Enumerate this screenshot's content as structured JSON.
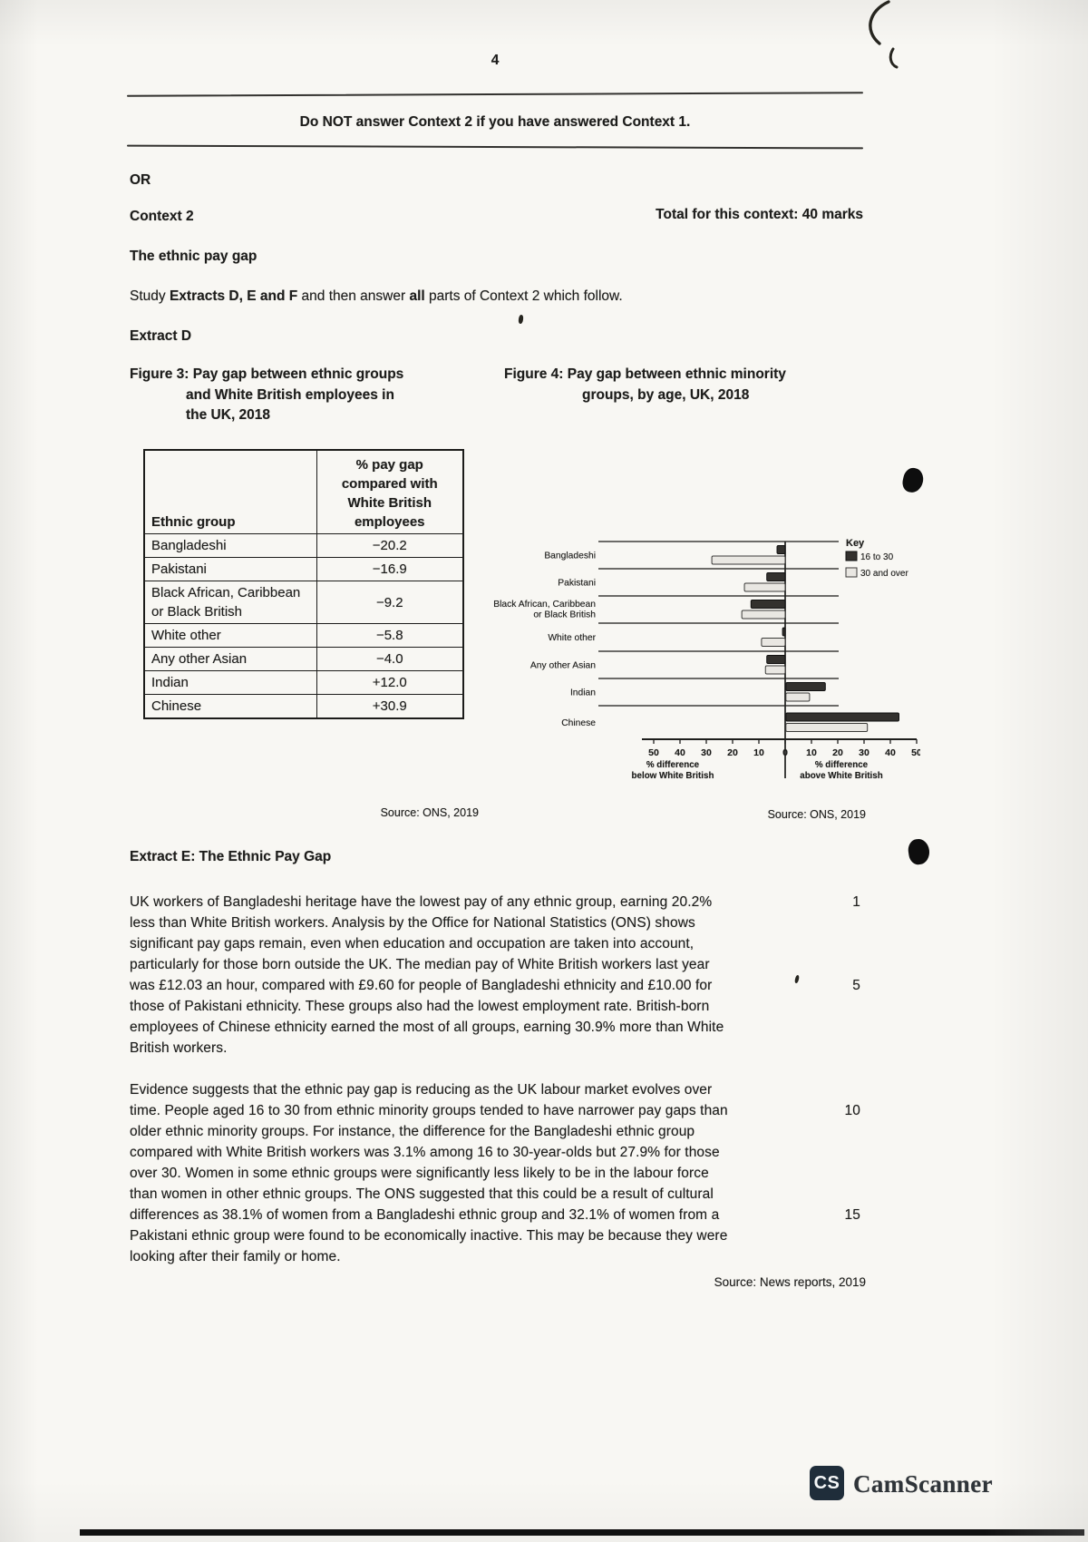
{
  "page": {
    "number": "4"
  },
  "notice": {
    "text": "Do NOT answer Context 2 if you have answered Context 1."
  },
  "or_label": "OR",
  "context": {
    "title": "Context 2",
    "total_marks": "Total for this context: 40 marks",
    "topic": "The ethnic pay gap",
    "instruction_segments": [
      {
        "text": "Study ",
        "bold": false
      },
      {
        "text": "Extracts D, E and F",
        "bold": true
      },
      {
        "text": " and then answer ",
        "bold": false
      },
      {
        "text": "all",
        "bold": true
      },
      {
        "text": " parts of Context 2 which follow.",
        "bold": false
      }
    ]
  },
  "extract_d": {
    "label": "Extract D",
    "figure3_title_lines": [
      "Figure 3: Pay gap between ethnic groups",
      "and White British employees in",
      "the UK, 2018"
    ],
    "figure4_title_lines": [
      "Figure 4: Pay gap between ethnic minority",
      "groups, by age, UK, 2018"
    ]
  },
  "chart_data": [
    {
      "type": "table",
      "title": "Figure 3: Pay gap between ethnic groups and White British employees in the UK, 2018",
      "columns": [
        "Ethnic group",
        "% pay gap compared with White British employees"
      ],
      "rows": [
        [
          "Bangladeshi",
          "−20.2"
        ],
        [
          "Pakistani",
          "−16.9"
        ],
        [
          "Black African, Caribbean or Black British",
          "−9.2"
        ],
        [
          "White other",
          "−5.8"
        ],
        [
          "Any other Asian",
          "−4.0"
        ],
        [
          "Indian",
          "+12.0"
        ],
        [
          "Chinese",
          "+30.9"
        ]
      ],
      "source": "Source: ONS, 2019"
    },
    {
      "type": "bar",
      "orientation": "horizontal",
      "title": "Figure 4: Pay gap between ethnic minority groups, by age, UK, 2018",
      "categories": [
        "Bangladeshi",
        "Pakistani",
        "Black African, Caribbean or Black British",
        "White other",
        "Any other Asian",
        "Indian",
        "Chinese"
      ],
      "categories_wrapped": [
        [
          "Bangladeshi"
        ],
        [
          "Pakistani"
        ],
        [
          "Black African, Caribbean",
          "or Black British"
        ],
        [
          "White other"
        ],
        [
          "Any other Asian"
        ],
        [
          "Indian"
        ],
        [
          "Chinese"
        ]
      ],
      "series": [
        {
          "name": "16 to 30",
          "values": [
            -3.1,
            -7,
            -13,
            -1,
            -7,
            15,
            43
          ]
        },
        {
          "name": "30 and over",
          "values": [
            -27.9,
            -15.5,
            -16.5,
            -9,
            -7.5,
            9,
            31
          ]
        }
      ],
      "series_colors": [
        "#33312e",
        "#e9e7e2"
      ],
      "xlim": [
        -50,
        50
      ],
      "tick_values": [
        -50,
        -40,
        -30,
        -20,
        -10,
        0,
        10,
        20,
        30,
        40,
        50
      ],
      "xlabel_left_lines": [
        "% difference",
        "below White British"
      ],
      "xlabel_right_lines": [
        "% difference",
        "above White British"
      ],
      "legend_title": "Key",
      "legend_position": "top-right",
      "grid": "category-separators",
      "source": "Source: ONS, 2019"
    }
  ],
  "extract_e": {
    "label": "Extract E:  The Ethnic Pay Gap",
    "paragraphs": [
      {
        "lines": [
          {
            "t": "UK workers of Bangladeshi heritage have the lowest pay of any ethnic group, earning 20.2%",
            "n": "1"
          },
          {
            "t": "less than White British workers.  Analysis by the Office for National Statistics (ONS) shows"
          },
          {
            "t": "significant pay gaps remain, even when education and occupation are taken into account,"
          },
          {
            "t": "particularly for those born outside the UK.  The median pay of White British workers last year"
          },
          {
            "t": "was £12.03 an hour, compared with £9.60 for people of Bangladeshi ethnicity and £10.00 for",
            "n": "5"
          },
          {
            "t": "those of Pakistani ethnicity.  These groups also had the lowest employment rate.  British-born"
          },
          {
            "t": "employees of Chinese ethnicity earned the most of all groups, earning 30.9% more than White"
          },
          {
            "t": "British workers."
          }
        ]
      },
      {
        "lines": [
          {
            "t": "Evidence suggests that the ethnic pay gap is reducing as the UK labour market evolves over"
          },
          {
            "t": "time.  People aged 16 to 30 from ethnic minority groups tended to have narrower pay gaps than",
            "n": "10"
          },
          {
            "t": "older ethnic minority groups.  For instance, the difference for the Bangladeshi ethnic group"
          },
          {
            "t": "compared with White British workers was 3.1% among 16 to 30-year-olds but 27.9% for those"
          },
          {
            "t": "over 30.  Women in some ethnic groups were significantly less likely to be in the labour force"
          },
          {
            "t": "than women in other ethnic groups.  The ONS suggested that this could be a result of cultural"
          },
          {
            "t": "differences as 38.1% of women from a Bangladeshi ethnic group and 32.1% of women from a",
            "n": "15"
          },
          {
            "t": "Pakistani ethnic group were found to be economically inactive.  This may be because they were"
          },
          {
            "t": "looking after their family or home."
          }
        ]
      }
    ],
    "source": "Source: News reports, 2019"
  },
  "footer": {
    "logo_text": "CS",
    "camscanner": "CamScanner"
  }
}
